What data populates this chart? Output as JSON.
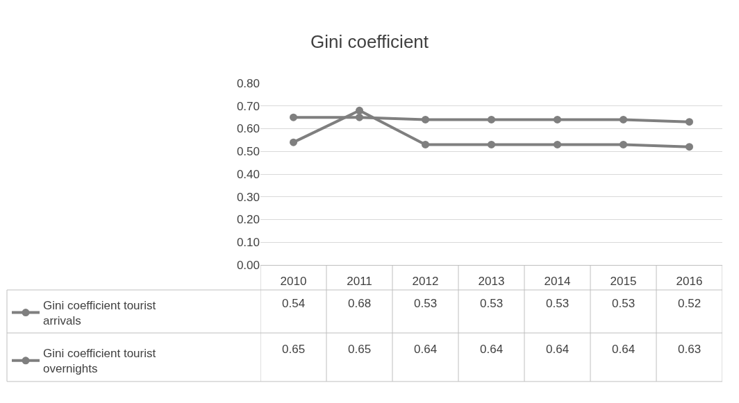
{
  "chart_data": {
    "type": "line",
    "title": "Gini coefficient",
    "categories": [
      "2010",
      "2011",
      "2012",
      "2013",
      "2014",
      "2015",
      "2016"
    ],
    "series": [
      {
        "name": "Gini coefficient tourist arrivals",
        "color": "#7f7f7f",
        "values": [
          0.54,
          0.68,
          0.53,
          0.53,
          0.53,
          0.53,
          0.52
        ]
      },
      {
        "name": "Gini coefficient tourist overnights",
        "color": "#7f7f7f",
        "values": [
          0.65,
          0.65,
          0.64,
          0.64,
          0.64,
          0.64,
          0.63
        ]
      }
    ],
    "ylim": [
      0,
      0.8
    ],
    "yticks": [
      {
        "value": 0,
        "label": "0.00"
      },
      {
        "value": 0.1,
        "label": "0.10"
      },
      {
        "value": 0.2,
        "label": "0.20"
      },
      {
        "value": 0.3,
        "label": "0.30"
      },
      {
        "value": 0.4,
        "label": "0.40"
      },
      {
        "value": 0.5,
        "label": "0.50"
      },
      {
        "value": 0.6,
        "label": "0.60"
      },
      {
        "value": 0.7,
        "label": "0.70"
      },
      {
        "value": 0.8,
        "label": "0.80"
      }
    ],
    "grid": "y",
    "marker": "circle",
    "line_style": "solid",
    "legend": "bottom",
    "data_labels": true
  }
}
